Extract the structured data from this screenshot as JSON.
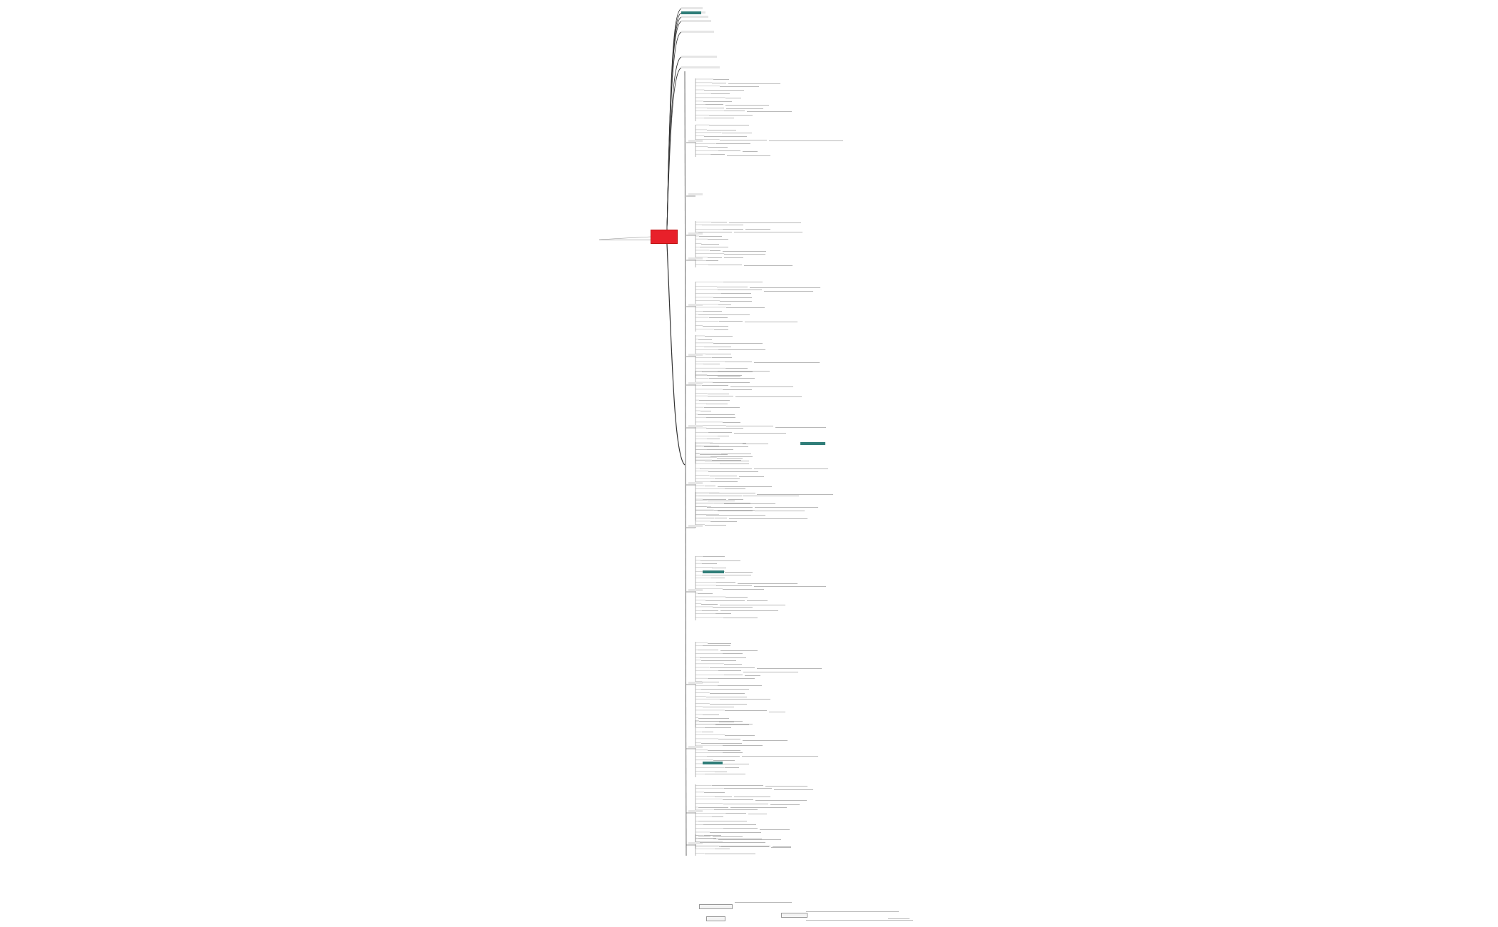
{
  "central_node": {
    "title": "",
    "color": "#e8202a"
  },
  "colors": {
    "line": "#555555",
    "leaf_line": "#b0b0b0",
    "highlight": "#2f7d78",
    "background": "#ffffff"
  }
}
